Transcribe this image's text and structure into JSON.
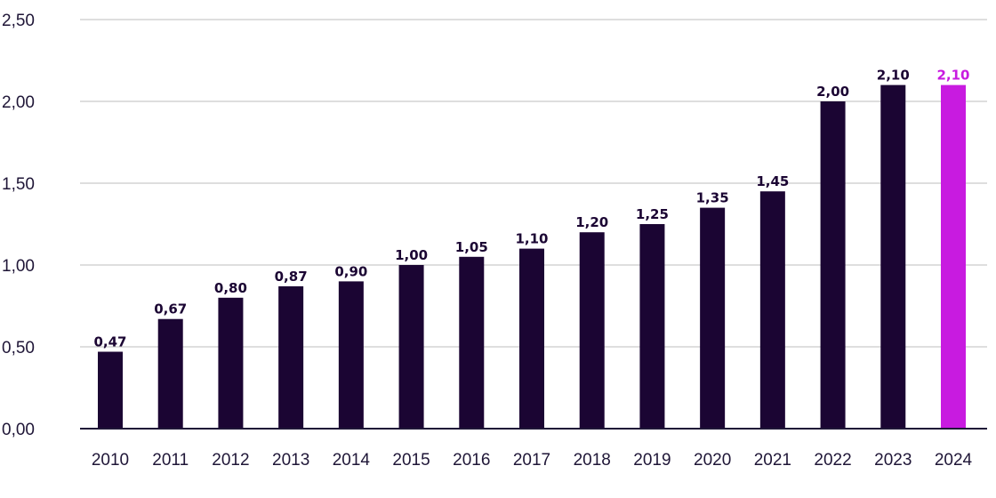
{
  "chart_data": {
    "type": "bar",
    "categories": [
      "2010",
      "2011",
      "2012",
      "2013",
      "2014",
      "2015",
      "2016",
      "2017",
      "2018",
      "2019",
      "2020",
      "2021",
      "2022",
      "2023",
      "2024"
    ],
    "values": [
      0.47,
      0.67,
      0.8,
      0.87,
      0.9,
      1.0,
      1.05,
      1.1,
      1.2,
      1.25,
      1.35,
      1.45,
      2.0,
      2.1,
      2.1
    ],
    "value_labels": [
      "0,47",
      "0,67",
      "0,80",
      "0,87",
      "0,90",
      "1,00",
      "1,05",
      "1,10",
      "1,20",
      "1,25",
      "1,35",
      "1,45",
      "2,00",
      "2,10",
      "2,10"
    ],
    "y_ticks": [
      0,
      0.5,
      1.0,
      1.5,
      2.0,
      2.5
    ],
    "y_tick_labels": [
      "0,00",
      "0,50",
      "1,00",
      "1,50",
      "2,00",
      "2,50"
    ],
    "ylim": [
      0,
      2.5
    ],
    "grid": true,
    "title": "",
    "xlabel": "",
    "ylabel": "",
    "colors": {
      "bar": "#1b0533",
      "highlight_bar": "#c81be0",
      "highlight_label": "#c81be0",
      "label": "#1b0533"
    },
    "highlight_index": 14
  }
}
